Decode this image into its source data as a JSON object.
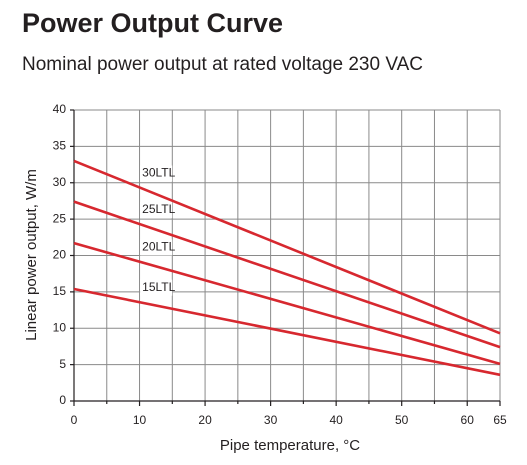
{
  "chart_data": {
    "type": "line",
    "title": "Power Output Curve",
    "subtitle": "Nominal power output at rated voltage 230 VAC",
    "xlabel": "Pipe temperature, °C",
    "ylabel": "Linear power output, W/m",
    "x": [
      0,
      65
    ],
    "series": [
      {
        "name": "30LTL",
        "color": "#d7282f",
        "values": [
          33,
          9.3
        ]
      },
      {
        "name": "25LTL",
        "color": "#d7282f",
        "values": [
          27.4,
          7.4
        ]
      },
      {
        "name": "20LTL",
        "color": "#d7282f",
        "values": [
          21.7,
          5.1
        ]
      },
      {
        "name": "15LTL",
        "color": "#d7282f",
        "values": [
          15.4,
          3.6
        ]
      }
    ],
    "xlim": [
      0,
      65
    ],
    "xticks": [
      0,
      10,
      20,
      30,
      40,
      50,
      60,
      65
    ],
    "x_minor_ticks": [
      5,
      15,
      25,
      35,
      45,
      55
    ],
    "ylim": [
      0,
      40
    ],
    "yticks": [
      0,
      5,
      10,
      15,
      20,
      25,
      30,
      35,
      40
    ],
    "grid": true
  }
}
